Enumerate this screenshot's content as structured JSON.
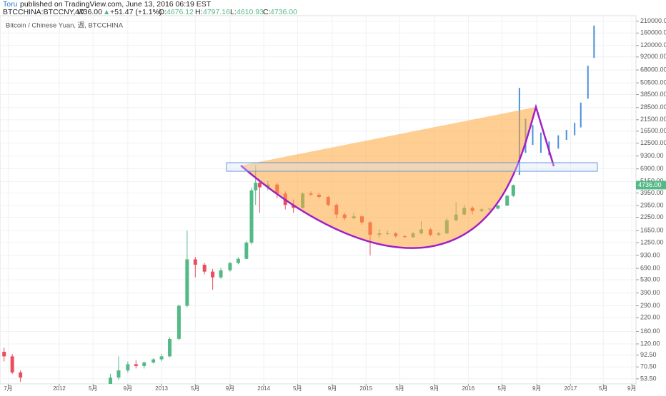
{
  "header": {
    "author": "Toru",
    "published": "published on TradingView.com, June 13, 2016 06:19 EST",
    "symbol": "BTCCHINA:BTCCNY, W",
    "last": "4736.00",
    "arrow": "▲",
    "change": "+51.47 (+1.1%)",
    "o_label": "O:",
    "o": "4676.12",
    "h_label": "H:",
    "h": "4797.16",
    "l_label": "L:",
    "l": "4610.93",
    "c_label": "C:",
    "c": "4736.00"
  },
  "chart_data": {
    "type": "candlestick",
    "title": "Bitcoin / Chinese Yuan, 週, BTCCHINA",
    "log_scale": true,
    "grid": true,
    "up_color": "#53b987",
    "down_color": "#eb4d5c",
    "xlim": [
      2011.42,
      2017.64
    ],
    "ylim": [
      47.6,
      239000
    ],
    "xticks": [
      {
        "value": 2011.5,
        "label": "7月"
      },
      2012,
      {
        "value": 2012.33,
        "label": "5月"
      },
      {
        "value": 2012.67,
        "label": "9月"
      },
      2013,
      {
        "value": 2013.33,
        "label": "5月"
      },
      {
        "value": 2013.67,
        "label": "9月"
      },
      2014,
      {
        "value": 2014.33,
        "label": "5月"
      },
      {
        "value": 2014.67,
        "label": "9月"
      },
      2015,
      {
        "value": 2015.33,
        "label": "5月"
      },
      {
        "value": 2015.67,
        "label": "9月"
      },
      2016,
      {
        "value": 2016.33,
        "label": "5月"
      },
      {
        "value": 2016.67,
        "label": "9月"
      },
      2017,
      {
        "value": 2017.32,
        "label": "5月"
      },
      {
        "value": 2017.6,
        "label": "9月"
      }
    ],
    "yticks": [
      {
        "value": 210000,
        "label": "210000.00"
      },
      {
        "value": 160000,
        "label": "160000.00"
      },
      {
        "value": 120000,
        "label": "120000.00"
      },
      {
        "value": 92000,
        "label": "92000.00"
      },
      {
        "value": 68000,
        "label": "68000.00"
      },
      {
        "value": 50500,
        "label": "50500.00"
      },
      {
        "value": 38500,
        "label": "38500.00"
      },
      {
        "value": 28500,
        "label": "28500.00"
      },
      {
        "value": 21500,
        "label": "21500.00"
      },
      {
        "value": 16500,
        "label": "16500.00"
      },
      {
        "value": 12500,
        "label": "12500.00"
      },
      {
        "value": 9300,
        "label": "9300.00"
      },
      {
        "value": 6900,
        "label": "6900.00"
      },
      {
        "value": 5150,
        "label": "5150.00"
      },
      {
        "value": 3950,
        "label": "3950.00"
      },
      {
        "value": 2950,
        "label": "2950.00"
      },
      {
        "value": 2250,
        "label": "2250.00"
      },
      {
        "value": 1650,
        "label": "1650.00"
      },
      {
        "value": 1250,
        "label": "1250.00"
      },
      {
        "value": 930,
        "label": "930.00"
      },
      {
        "value": 690,
        "label": "690.00"
      },
      {
        "value": 530,
        "label": "530.00"
      },
      {
        "value": 390,
        "label": "390.00"
      },
      {
        "value": 290,
        "label": "290.00"
      },
      {
        "value": 220,
        "label": "220.00"
      },
      {
        "value": 160,
        "label": "160.00"
      },
      {
        "value": 120,
        "label": "120.00"
      },
      {
        "value": 92.5,
        "label": "92.50"
      },
      {
        "value": 70.5,
        "label": "70.50"
      },
      {
        "value": 53.5,
        "label": "53.50"
      }
    ],
    "last_price": {
      "value": 4736,
      "label": "4736.00"
    },
    "candles": {
      "x": [
        2011.46,
        2011.54,
        2011.62,
        2012.5,
        2012.58,
        2012.67,
        2012.75,
        2012.83,
        2012.92,
        2013.0,
        2013.08,
        2013.17,
        2013.25,
        2013.33,
        2013.42,
        2013.5,
        2013.58,
        2013.67,
        2013.75,
        2013.83,
        2013.88,
        2013.92,
        2013.96,
        2014.04,
        2014.13,
        2014.21,
        2014.29,
        2014.38,
        2014.46,
        2014.54,
        2014.63,
        2014.71,
        2014.79,
        2014.88,
        2014.96,
        2015.04,
        2015.13,
        2015.21,
        2015.29,
        2015.38,
        2015.46,
        2015.54,
        2015.63,
        2015.71,
        2015.79,
        2015.88,
        2015.96,
        2016.04,
        2016.13,
        2016.21,
        2016.29,
        2016.38,
        2016.44
      ],
      "open": [
        100,
        90,
        62,
        45,
        55,
        65,
        75,
        72,
        78,
        84,
        90,
        135,
        290,
        850,
        750,
        640,
        560,
        660,
        780,
        860,
        1250,
        4200,
        5000,
        4500,
        4800,
        3900,
        3000,
        2800,
        3900,
        3800,
        3600,
        3000,
        2400,
        2200,
        2300,
        2000,
        1500,
        1550,
        1550,
        1450,
        1420,
        1550,
        1700,
        1500,
        1550,
        2100,
        2400,
        2800,
        2600,
        2700,
        2750,
        2950,
        3700
      ],
      "high": [
        110,
        95,
        65,
        60,
        90,
        80,
        82,
        80,
        86,
        95,
        140,
        300,
        1650,
        900,
        780,
        680,
        700,
        800,
        900,
        1300,
        4500,
        7500,
        5400,
        5200,
        5000,
        4100,
        3400,
        4000,
        4100,
        3950,
        3700,
        3100,
        2500,
        2500,
        2350,
        2050,
        1700,
        1650,
        1600,
        1500,
        1600,
        2050,
        1750,
        1600,
        2200,
        3200,
        3000,
        2900,
        2800,
        2800,
        3000,
        3800,
        4800
      ],
      "low": [
        80,
        60,
        50,
        44,
        52,
        62,
        68,
        68,
        76,
        80,
        88,
        130,
        280,
        560,
        600,
        420,
        540,
        640,
        760,
        850,
        1200,
        3000,
        2500,
        4200,
        3500,
        2700,
        2500,
        2750,
        3700,
        3500,
        2900,
        2200,
        2100,
        2150,
        1900,
        930,
        1400,
        1500,
        1400,
        1400,
        1400,
        1500,
        1450,
        1450,
        1520,
        2050,
        2350,
        2400,
        2550,
        2650,
        2700,
        2900,
        3600
      ],
      "close": [
        90,
        62,
        55,
        55,
        65,
        75,
        72,
        78,
        84,
        90,
        135,
        290,
        850,
        750,
        640,
        560,
        660,
        780,
        860,
        1250,
        4200,
        5000,
        4500,
        4800,
        3900,
        3000,
        2800,
        3900,
        3800,
        3600,
        3000,
        2400,
        2200,
        2300,
        2000,
        1500,
        1550,
        1550,
        1450,
        1420,
        1550,
        1700,
        1500,
        1550,
        2100,
        2400,
        2800,
        2600,
        2700,
        2750,
        2950,
        3700,
        4736
      ]
    },
    "projection": {
      "color": "#4a90d9",
      "x": [
        2016.5,
        2016.56,
        2016.63,
        2016.71,
        2016.79,
        2016.88,
        2016.96,
        2017.04,
        2017.1,
        2017.17,
        2017.23
      ],
      "low": [
        6000,
        10000,
        12000,
        10000,
        9500,
        11000,
        13500,
        15000,
        18000,
        35000,
        90000
      ],
      "high": [
        45000,
        22000,
        19000,
        16000,
        13000,
        15000,
        17000,
        20000,
        32000,
        75000,
        190000
      ]
    }
  }
}
